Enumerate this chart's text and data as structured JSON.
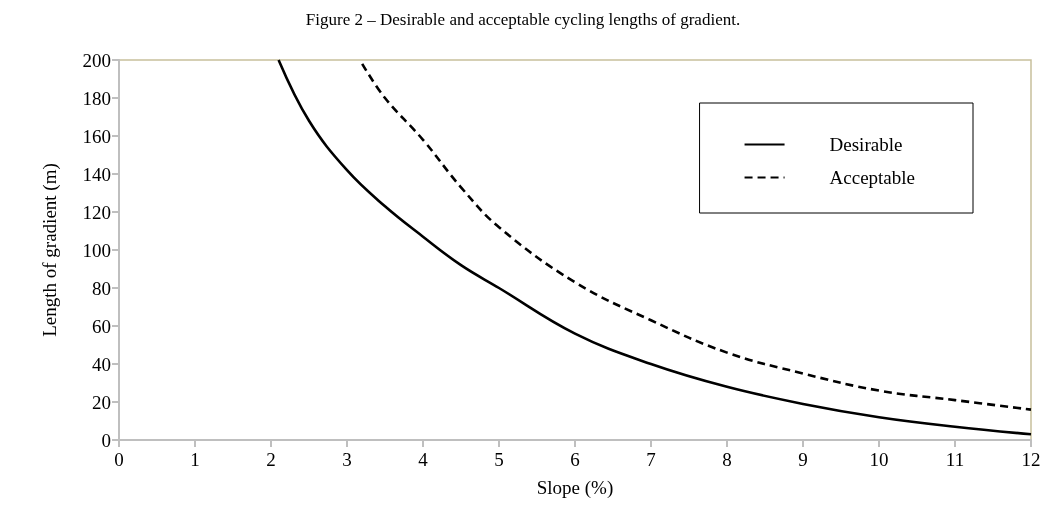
{
  "chart_data": {
    "type": "line",
    "title": "Figure 2 – Desirable and acceptable cycling lengths of gradient.",
    "xlabel": "Slope (%)",
    "ylabel": "Length of gradient (m)",
    "xlim": [
      0,
      12
    ],
    "xticks": [
      0,
      1,
      2,
      3,
      4,
      5,
      6,
      7,
      8,
      9,
      10,
      11,
      12
    ],
    "ylim": [
      0,
      200
    ],
    "yticks": [
      0,
      20,
      40,
      60,
      80,
      100,
      120,
      140,
      160,
      180,
      200
    ],
    "grid": false,
    "legend": "top right",
    "marker": "none",
    "series": [
      {
        "name": "Desirable",
        "color": "#000000",
        "line_style": "solid",
        "x": [
          2.1,
          2.5,
          3,
          3.5,
          4,
          4.5,
          5,
          6,
          7,
          8,
          9,
          10,
          11,
          12
        ],
        "values": [
          200,
          168,
          142,
          123,
          107,
          92,
          80,
          56,
          40,
          28,
          19,
          12,
          7,
          3
        ]
      },
      {
        "name": "Acceptable",
        "color": "#000000",
        "line_style": "dashed",
        "x": [
          3.2,
          3.5,
          4,
          4.5,
          5,
          6,
          7,
          8,
          9,
          10,
          11,
          12
        ],
        "values": [
          198,
          180,
          158,
          133,
          112,
          83,
          63,
          46,
          35,
          26,
          21,
          16
        ]
      }
    ]
  }
}
